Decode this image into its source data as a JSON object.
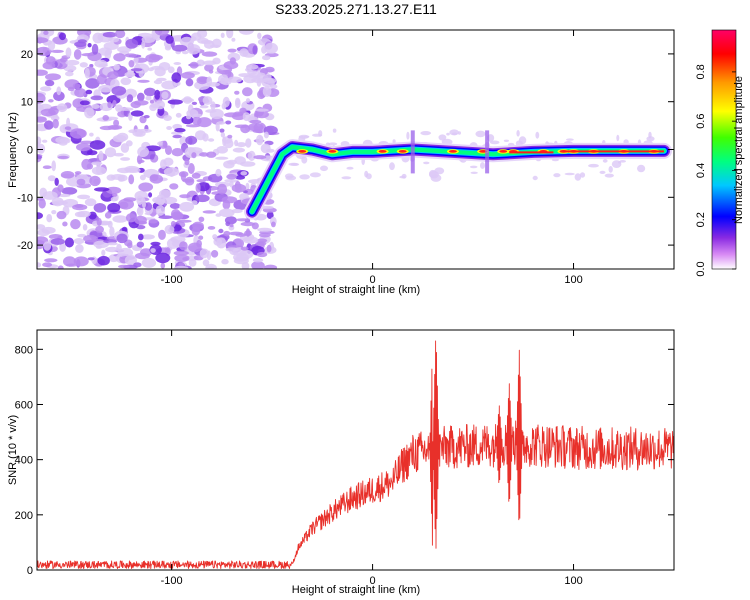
{
  "title": "S233.2025.271.13.27.E11",
  "colors": {
    "snr_line": "#e8302a",
    "noise_purple": "#9a60ea",
    "noise_light": "#dcc8f6"
  },
  "chart_data": [
    {
      "type": "heatmap",
      "xlabel": "Height of straight line (km)",
      "ylabel": "Frequency (Hz)",
      "xlim": [
        -167,
        150
      ],
      "ylim": [
        -25,
        25
      ],
      "xticks": [
        -100,
        0,
        100
      ],
      "yticks": [
        -20,
        -10,
        0,
        10,
        20
      ],
      "grid": false,
      "colorbar": {
        "label": "Normalized spectral amplitude",
        "range": [
          0,
          0.97
        ],
        "ticks": [
          0.0,
          0.2,
          0.4,
          0.6,
          0.8
        ]
      },
      "signal_track": {
        "description_points": [
          {
            "x": -60,
            "y": -13
          },
          {
            "x": -55,
            "y": -9
          },
          {
            "x": -50,
            "y": -5
          },
          {
            "x": -45,
            "y": -1
          },
          {
            "x": -40,
            "y": 0.5
          },
          {
            "x": -30,
            "y": 0
          },
          {
            "x": -20,
            "y": -1
          },
          {
            "x": -10,
            "y": -0.5
          },
          {
            "x": 0,
            "y": -0.5
          },
          {
            "x": 20,
            "y": 0
          },
          {
            "x": 40,
            "y": -0.5
          },
          {
            "x": 60,
            "y": -1
          },
          {
            "x": 80,
            "y": -0.5
          },
          {
            "x": 100,
            "y": -0.3
          },
          {
            "x": 120,
            "y": -0.3
          },
          {
            "x": 145,
            "y": -0.3
          }
        ]
      }
    },
    {
      "type": "line",
      "xlabel": "Height of straight line (km)",
      "ylabel": "SNR (10 * v/v)",
      "xlim": [
        -167,
        150
      ],
      "ylim": [
        0,
        870
      ],
      "xticks": [
        -100,
        0,
        100
      ],
      "yticks": [
        0,
        200,
        400,
        600,
        800
      ],
      "grid": false,
      "series": [
        {
          "envelope": [
            {
              "x": -167,
              "y": 20
            },
            {
              "x": -40,
              "y": 20
            },
            {
              "x": -37,
              "y": 80
            },
            {
              "x": -30,
              "y": 150
            },
            {
              "x": -20,
              "y": 210
            },
            {
              "x": -10,
              "y": 260
            },
            {
              "x": 0,
              "y": 290
            },
            {
              "x": 10,
              "y": 320
            },
            {
              "x": 15,
              "y": 380
            },
            {
              "x": 20,
              "y": 420
            },
            {
              "x": 30,
              "y": 440
            },
            {
              "x": 50,
              "y": 450
            },
            {
              "x": 70,
              "y": 460
            },
            {
              "x": 90,
              "y": 450
            },
            {
              "x": 110,
              "y": 440
            },
            {
              "x": 130,
              "y": 440
            },
            {
              "x": 150,
              "y": 440
            }
          ],
          "spikes": [
            {
              "x": 30,
              "max": 845,
              "min": 30
            },
            {
              "x": 31.5,
              "max": 870,
              "min": 60
            },
            {
              "x": 73,
              "max": 800,
              "min": 140
            },
            {
              "x": 68,
              "max": 680,
              "min": 220
            },
            {
              "x": 63,
              "max": 600,
              "min": 300
            }
          ]
        }
      ]
    }
  ]
}
